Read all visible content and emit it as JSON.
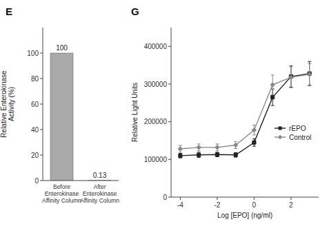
{
  "chart_data": [
    {
      "type": "bar",
      "title": "E",
      "categories": [
        "Before\nEnterokinase\nAffinity Column",
        "After\nEnterokinase\nAffinity Column"
      ],
      "values": [
        100,
        0.13
      ],
      "color": "#aaaaaa",
      "ylabel": "Relative Enterokinase\nActivity (%)",
      "ylim": [
        0,
        120
      ],
      "yticks": [
        0,
        20,
        40,
        60,
        80,
        100
      ],
      "data_labels": true
    },
    {
      "type": "line",
      "title": "G",
      "x": [
        -4,
        -3,
        -2,
        -1,
        0,
        1,
        2,
        3
      ],
      "series": [
        {
          "name": "rEPO",
          "color": "#222222",
          "marker": "square",
          "values": [
            110000,
            112000,
            113000,
            112000,
            145000,
            265000,
            320000,
            328000
          ],
          "errors": [
            6000,
            7000,
            6000,
            6000,
            10000,
            22000,
            28000,
            32000
          ]
        },
        {
          "name": "Control",
          "color": "#888888",
          "marker": "diamond",
          "values": [
            128000,
            132000,
            132000,
            138000,
            178000,
            298000,
            318000,
            326000
          ],
          "errors": [
            9000,
            9000,
            9000,
            9000,
            13000,
            26000,
            28000,
            28000
          ]
        }
      ],
      "xlabel": "Log [EPO] (ng/ml)",
      "ylabel": "Relative Light Units",
      "xlim": [
        -4.5,
        3.5
      ],
      "ylim": [
        0,
        450000
      ],
      "xticks": [
        -4,
        -2,
        0,
        2
      ],
      "yticks": [
        0,
        100000,
        200000,
        300000,
        400000
      ],
      "legend": "right"
    }
  ]
}
